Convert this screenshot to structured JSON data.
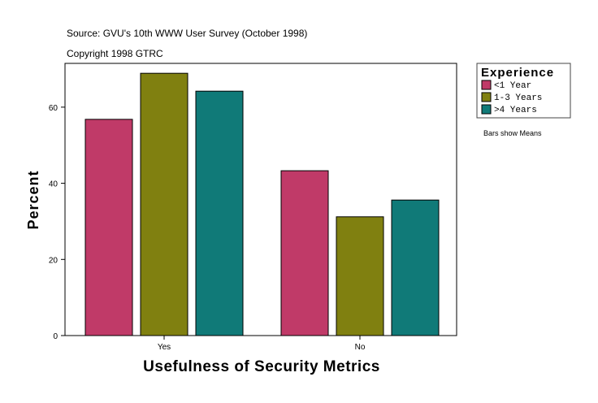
{
  "chart_data": {
    "type": "bar",
    "title_lines": [
      "Source: GVU's 10th WWW User Survey (October 1998)",
      "Copyright 1998 GTRC"
    ],
    "xlabel": "Usefulness of Security Metrics",
    "ylabel": "Percent",
    "categories": [
      "Yes",
      "No"
    ],
    "ylim": [
      0,
      71.5
    ],
    "yticks": [
      0,
      20,
      40,
      60
    ],
    "grid": false,
    "legend_title": "Experience",
    "legend_position": "right",
    "note": "Bars show Means",
    "series": [
      {
        "name": "<1 Year",
        "color": "#c03a68",
        "values": [
          56.8,
          43.3
        ]
      },
      {
        "name": "1-3 Years",
        "color": "#808010",
        "values": [
          68.9,
          31.2
        ]
      },
      {
        "name": ">4 Years",
        "color": "#107a78",
        "values": [
          64.2,
          35.6
        ]
      }
    ]
  }
}
